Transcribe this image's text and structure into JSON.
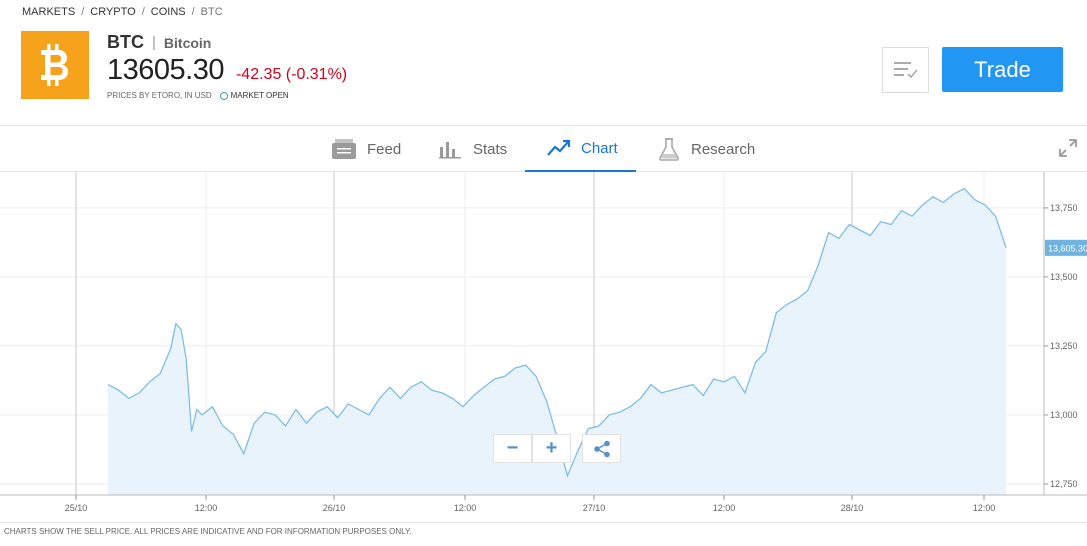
{
  "breadcrumb": [
    {
      "label": "MARKETS"
    },
    {
      "label": "CRYPTO"
    },
    {
      "label": "COINS"
    },
    {
      "label": "BTC"
    }
  ],
  "breadcrumb_separator": "/",
  "instrument": {
    "symbol": "BTC",
    "name": "Bitcoin",
    "price": "13605.30",
    "change": "-42.35 (-0.31%)",
    "price_source": "PRICES BY ETORO, IN USD",
    "market_status": "MARKET OPEN",
    "logo_icon": "bitcoin-logo",
    "logo_color": "#f7a21b"
  },
  "actions": {
    "watchlist_icon": "watchlist-icon",
    "trade_label": "Trade",
    "trade_color": "#2196f3"
  },
  "tabs": [
    {
      "label": "Feed",
      "icon": "feed-icon",
      "active": false
    },
    {
      "label": "Stats",
      "icon": "stats-icon",
      "active": false
    },
    {
      "label": "Chart",
      "icon": "chart-icon",
      "active": true
    },
    {
      "label": "Research",
      "icon": "research-icon",
      "active": false
    }
  ],
  "chart_controls": {
    "zoom_out": "−",
    "zoom_in": "+",
    "share_icon": "share-icon",
    "expand_icon": "expand-icon"
  },
  "disclaimer": "CHARTS SHOW THE SELL PRICE. ALL PRICES ARE INDICATIVE AND FOR INFORMATION PURPOSES ONLY.",
  "chart_data": {
    "type": "area",
    "series": [
      {
        "values": [
          [
            0,
            13110
          ],
          [
            1,
            13090
          ],
          [
            2,
            13060
          ],
          [
            3,
            13080
          ],
          [
            4,
            13120
          ],
          [
            5,
            13150
          ],
          [
            6,
            13240
          ],
          [
            6.5,
            13330
          ],
          [
            7,
            13310
          ],
          [
            7.5,
            13200
          ],
          [
            8,
            12940
          ],
          [
            8.5,
            13020
          ],
          [
            9,
            13000
          ],
          [
            10,
            13030
          ],
          [
            11,
            12960
          ],
          [
            12,
            12930
          ],
          [
            13,
            12860
          ],
          [
            14,
            12970
          ],
          [
            15,
            13010
          ],
          [
            16,
            13000
          ],
          [
            17,
            12960
          ],
          [
            18,
            13020
          ],
          [
            19,
            12970
          ],
          [
            20,
            13010
          ],
          [
            21,
            13030
          ],
          [
            22,
            12990
          ],
          [
            23,
            13040
          ],
          [
            24,
            13020
          ],
          [
            25,
            13000
          ],
          [
            26,
            13060
          ],
          [
            27,
            13100
          ],
          [
            28,
            13060
          ],
          [
            29,
            13100
          ],
          [
            30,
            13120
          ],
          [
            31,
            13090
          ],
          [
            32,
            13080
          ],
          [
            33,
            13060
          ],
          [
            34,
            13030
          ],
          [
            35,
            13070
          ],
          [
            36,
            13100
          ],
          [
            37,
            13130
          ],
          [
            38,
            13140
          ],
          [
            39,
            13170
          ],
          [
            40,
            13180
          ],
          [
            41,
            13140
          ],
          [
            42,
            13050
          ],
          [
            43,
            12920
          ],
          [
            44,
            12780
          ],
          [
            45,
            12870
          ],
          [
            46,
            12950
          ],
          [
            47,
            12960
          ],
          [
            48,
            13000
          ],
          [
            49,
            13010
          ],
          [
            50,
            13030
          ],
          [
            51,
            13060
          ],
          [
            52,
            13110
          ],
          [
            53,
            13080
          ],
          [
            54,
            13090
          ],
          [
            55,
            13100
          ],
          [
            56,
            13110
          ],
          [
            57,
            13070
          ],
          [
            58,
            13130
          ],
          [
            59,
            13120
          ],
          [
            60,
            13140
          ],
          [
            61,
            13080
          ],
          [
            62,
            13190
          ],
          [
            63,
            13230
          ],
          [
            64,
            13370
          ],
          [
            65,
            13400
          ],
          [
            66,
            13420
          ],
          [
            67,
            13450
          ],
          [
            68,
            13540
          ],
          [
            69,
            13660
          ],
          [
            70,
            13640
          ],
          [
            71,
            13690
          ],
          [
            72,
            13670
          ],
          [
            73,
            13650
          ],
          [
            74,
            13700
          ],
          [
            75,
            13690
          ],
          [
            76,
            13740
          ],
          [
            77,
            13720
          ],
          [
            78,
            13760
          ],
          [
            79,
            13790
          ],
          [
            80,
            13770
          ],
          [
            81,
            13800
          ],
          [
            82,
            13820
          ],
          [
            83,
            13780
          ],
          [
            84,
            13760
          ],
          [
            85,
            13720
          ],
          [
            86,
            13605.3
          ]
        ]
      }
    ],
    "x_tick_labels": [
      "25/10",
      "12:00",
      "26/10",
      "12:00",
      "27/10",
      "12:00",
      "28/10",
      "12:00"
    ],
    "y_ticks": [
      12750,
      13000,
      13250,
      13500,
      13750
    ],
    "y_tick_labels": [
      "12,750",
      "13,000",
      "13,250",
      "13,500",
      "13,750"
    ],
    "ylim": [
      12710,
      13880
    ],
    "current_value_label": "13,605.30",
    "grid": true,
    "line_color": "#7fbde6",
    "fill_color": "#e8f3fb"
  }
}
